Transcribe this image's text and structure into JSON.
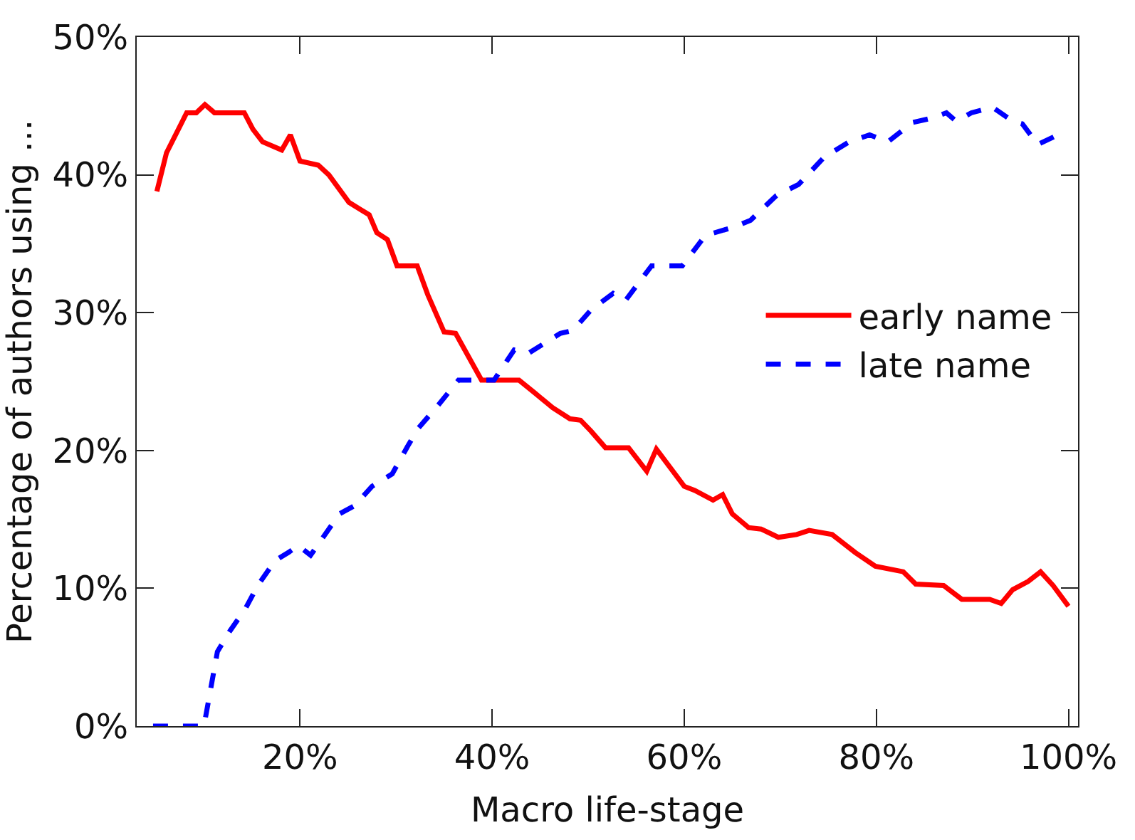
{
  "chart_data": {
    "type": "line",
    "xlabel": "Macro life-stage",
    "ylabel": "Percentage of authors using ...",
    "xlim": [
      3,
      101
    ],
    "ylim": [
      0,
      50
    ],
    "xticks": [
      {
        "value": 20,
        "label": "20%"
      },
      {
        "value": 40,
        "label": "40%"
      },
      {
        "value": 60,
        "label": "60%"
      },
      {
        "value": 80,
        "label": "80%"
      },
      {
        "value": 100,
        "label": "100%"
      }
    ],
    "yticks": [
      {
        "value": 0,
        "label": "0%"
      },
      {
        "value": 10,
        "label": "10%"
      },
      {
        "value": 20,
        "label": "20%"
      },
      {
        "value": 30,
        "label": "30%"
      },
      {
        "value": 40,
        "label": "40%"
      },
      {
        "value": 50,
        "label": "50%"
      }
    ],
    "legend": "right",
    "marker": "none",
    "series": [
      {
        "name": "early name",
        "color": "#ff0000",
        "line_style": "solid",
        "x": [
          5.1,
          6.1,
          8.2,
          9.2,
          10.1,
          11.1,
          14.2,
          15.1,
          16.1,
          18.1,
          19.0,
          20.0,
          21.9,
          23.0,
          25.1,
          27.2,
          28.0,
          29.1,
          30.1,
          32.2,
          33.3,
          35.0,
          36.2,
          38.9,
          42.8,
          44.4,
          46.3,
          48.1,
          49.2,
          50.3,
          51.8,
          54.2,
          56.1,
          57.1,
          60.0,
          61.1,
          63.0,
          64.0,
          65.0,
          66.7,
          68.0,
          69.8,
          71.7,
          73.0,
          75.4,
          77.8,
          79.9,
          82.8,
          84.1,
          87.0,
          88.9,
          91.8,
          93.0,
          94.2,
          95.8,
          97.1,
          98.4,
          100.0
        ],
        "values": [
          38.8,
          41.6,
          44.5,
          44.5,
          45.1,
          44.5,
          44.5,
          43.3,
          42.4,
          41.8,
          42.9,
          41.0,
          40.7,
          40.0,
          38.0,
          37.1,
          35.8,
          35.3,
          33.4,
          33.4,
          31.3,
          28.6,
          28.5,
          25.1,
          25.1,
          24.2,
          23.1,
          22.3,
          22.2,
          21.4,
          20.2,
          20.2,
          18.5,
          20.1,
          17.4,
          17.1,
          16.4,
          16.8,
          15.4,
          14.4,
          14.3,
          13.7,
          13.9,
          14.2,
          13.9,
          12.6,
          11.6,
          11.2,
          10.3,
          10.2,
          9.2,
          9.2,
          8.9,
          9.9,
          10.5,
          11.2,
          10.2,
          8.7
        ]
      },
      {
        "name": "late name",
        "color": "#0000ff",
        "line_style": "dashed",
        "x": [
          4.7,
          10.0,
          11.4,
          12.7,
          14.3,
          15.6,
          17.4,
          18.8,
          19.8,
          21.1,
          24.1,
          25.7,
          27.5,
          29.6,
          31.2,
          32.3,
          34.4,
          36.5,
          40.2,
          42.3,
          43.9,
          47.1,
          48.4,
          50.3,
          52.6,
          53.9,
          56.6,
          59.8,
          62.2,
          65.1,
          66.9,
          69.6,
          71.9,
          74.6,
          77.2,
          79.3,
          81.2,
          83.8,
          85.7,
          87.3,
          88.3,
          89.9,
          92.1,
          94.2,
          95.2,
          96.8,
          98.9
        ],
        "values": [
          0,
          0,
          5.4,
          6.9,
          8.5,
          10.2,
          12.0,
          12.6,
          13.1,
          12.4,
          15.4,
          16.0,
          17.4,
          18.3,
          20.3,
          21.6,
          23.3,
          25.1,
          25.1,
          27.3,
          27.1,
          28.5,
          28.7,
          30.2,
          31.4,
          30.9,
          33.4,
          33.4,
          35.6,
          36.2,
          36.7,
          38.5,
          39.3,
          41.3,
          42.4,
          42.9,
          42.4,
          43.8,
          44.1,
          44.5,
          43.9,
          44.5,
          44.9,
          43.9,
          43.7,
          42.2,
          42.9
        ]
      }
    ]
  }
}
